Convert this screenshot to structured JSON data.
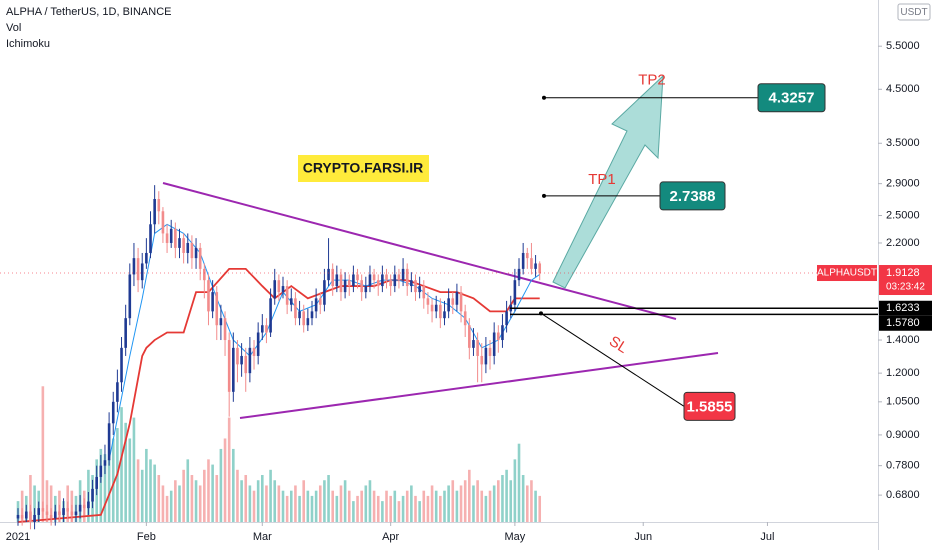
{
  "header": {
    "symbol": "ALPHA / TetherUS, 1D, BINANCE",
    "volume": "Vol",
    "indicator": "Ichimoku"
  },
  "chart_data": {
    "type": "candlestick",
    "currency": "USDT",
    "watermark": "CRYPTO.FARSI.IR",
    "x": [
      0,
      1,
      2,
      3,
      4,
      5,
      6,
      7,
      8,
      9,
      10,
      11,
      12,
      13,
      14,
      15,
      16,
      17,
      18,
      19,
      20,
      21,
      22,
      23,
      24,
      25,
      26,
      27,
      28,
      29,
      30,
      31,
      32,
      33,
      34,
      35,
      36,
      37,
      38,
      39,
      40,
      41,
      42,
      43,
      44,
      45,
      46,
      47,
      48,
      49,
      50,
      51,
      52,
      53,
      54,
      55,
      56,
      57,
      58,
      59,
      60,
      61,
      62,
      63,
      64,
      65,
      66,
      67,
      68,
      69,
      70,
      71,
      72,
      73,
      74,
      75,
      76,
      77,
      78,
      79,
      80,
      81,
      82,
      83,
      84,
      85,
      86,
      87,
      88,
      89,
      90,
      91,
      92,
      93,
      94,
      95,
      96,
      97,
      98,
      99,
      100,
      101,
      102,
      103,
      104,
      105,
      106,
      107,
      108,
      109,
      110,
      111,
      112,
      113,
      114,
      115,
      116,
      117,
      118,
      119,
      120,
      121,
      122,
      123,
      124,
      125,
      126
    ],
    "open": [
      0.61,
      0.62,
      0.61,
      0.63,
      0.6,
      0.62,
      0.64,
      0.63,
      0.62,
      0.61,
      0.63,
      0.62,
      0.64,
      0.63,
      0.62,
      0.63,
      0.65,
      0.64,
      0.66,
      0.7,
      0.74,
      0.78,
      0.8,
      0.95,
      1.05,
      1.15,
      1.35,
      1.55,
      1.9,
      2.05,
      1.85,
      2.0,
      2.1,
      2.4,
      2.7,
      2.55,
      2.3,
      2.2,
      2.35,
      2.15,
      2.25,
      2.1,
      2.2,
      2.05,
      2.15,
      1.95,
      1.85,
      1.6,
      1.75,
      1.5,
      1.55,
      1.4,
      1.1,
      1.35,
      1.25,
      1.3,
      1.2,
      1.35,
      1.3,
      1.45,
      1.5,
      1.45,
      1.7,
      1.85,
      1.75,
      1.8,
      1.65,
      1.7,
      1.55,
      1.6,
      1.5,
      1.55,
      1.6,
      1.7,
      1.65,
      1.85,
      1.95,
      1.8,
      1.9,
      1.75,
      1.85,
      1.8,
      1.9,
      1.85,
      1.75,
      1.8,
      1.9,
      1.85,
      1.8,
      1.9,
      1.85,
      1.8,
      1.9,
      1.85,
      1.95,
      1.8,
      1.85,
      1.75,
      1.8,
      1.7,
      1.65,
      1.6,
      1.65,
      1.55,
      1.6,
      1.7,
      1.65,
      1.75,
      1.6,
      1.5,
      1.35,
      1.4,
      1.3,
      1.25,
      1.35,
      1.3,
      1.45,
      1.4,
      1.5,
      1.6,
      1.65,
      1.85,
      1.95,
      2.1,
      2.05,
      1.95,
      2.0
    ],
    "high": [
      0.64,
      0.64,
      0.65,
      0.65,
      0.64,
      0.66,
      0.66,
      0.65,
      0.64,
      0.65,
      0.65,
      0.67,
      0.66,
      0.65,
      0.65,
      0.68,
      0.67,
      0.69,
      0.73,
      0.78,
      0.82,
      0.86,
      1.0,
      1.1,
      1.22,
      1.42,
      1.65,
      2.0,
      2.2,
      2.15,
      2.1,
      2.25,
      2.55,
      2.88,
      2.8,
      2.6,
      2.4,
      2.45,
      2.42,
      2.35,
      2.3,
      2.3,
      2.28,
      2.25,
      2.2,
      2.0,
      1.9,
      1.85,
      1.8,
      1.65,
      1.6,
      1.45,
      1.45,
      1.4,
      1.38,
      1.35,
      1.42,
      1.4,
      1.52,
      1.58,
      1.55,
      1.78,
      1.95,
      1.9,
      1.88,
      1.85,
      1.78,
      1.75,
      1.68,
      1.65,
      1.62,
      1.68,
      1.78,
      1.75,
      1.95,
      2.25,
      2.0,
      1.98,
      1.95,
      1.92,
      1.9,
      1.98,
      1.95,
      1.9,
      1.88,
      1.98,
      1.95,
      1.9,
      1.98,
      1.95,
      1.9,
      1.98,
      1.95,
      2.05,
      2.0,
      1.92,
      1.9,
      1.88,
      1.85,
      1.75,
      1.7,
      1.72,
      1.7,
      1.68,
      1.78,
      1.75,
      1.82,
      1.8,
      1.65,
      1.55,
      1.48,
      1.45,
      1.38,
      1.42,
      1.4,
      1.52,
      1.5,
      1.58,
      1.68,
      1.72,
      1.95,
      2.05,
      2.2,
      2.15,
      2.2,
      2.08,
      2.02
    ],
    "low": [
      0.59,
      0.59,
      0.6,
      0.58,
      0.58,
      0.6,
      0.61,
      0.6,
      0.59,
      0.59,
      0.6,
      0.6,
      0.61,
      0.6,
      0.6,
      0.61,
      0.62,
      0.62,
      0.64,
      0.68,
      0.72,
      0.75,
      0.78,
      0.9,
      1.0,
      1.1,
      1.3,
      1.5,
      1.8,
      1.75,
      1.78,
      1.95,
      2.05,
      2.3,
      2.4,
      2.2,
      2.1,
      2.15,
      2.05,
      2.05,
      2.0,
      2.0,
      1.95,
      1.95,
      1.85,
      1.7,
      1.5,
      1.55,
      1.4,
      1.4,
      1.3,
      0.98,
      1.05,
      1.15,
      1.18,
      1.1,
      1.15,
      1.22,
      1.25,
      1.4,
      1.38,
      1.42,
      1.65,
      1.68,
      1.7,
      1.58,
      1.6,
      1.5,
      1.5,
      1.45,
      1.46,
      1.5,
      1.55,
      1.58,
      1.6,
      1.8,
      1.72,
      1.75,
      1.68,
      1.7,
      1.72,
      1.75,
      1.78,
      1.68,
      1.7,
      1.75,
      1.78,
      1.72,
      1.75,
      1.78,
      1.72,
      1.75,
      1.78,
      1.8,
      1.72,
      1.75,
      1.68,
      1.7,
      1.62,
      1.58,
      1.52,
      1.55,
      1.48,
      1.5,
      1.55,
      1.58,
      1.6,
      1.52,
      1.42,
      1.28,
      1.3,
      1.15,
      1.15,
      1.2,
      1.22,
      1.25,
      1.32,
      1.35,
      1.45,
      1.55,
      1.6,
      1.8,
      1.9,
      1.95,
      1.9,
      1.88,
      1.85
    ],
    "close": [
      0.62,
      0.61,
      0.63,
      0.6,
      0.62,
      0.64,
      0.63,
      0.62,
      0.61,
      0.63,
      0.62,
      0.64,
      0.63,
      0.62,
      0.63,
      0.65,
      0.64,
      0.66,
      0.7,
      0.74,
      0.78,
      0.8,
      0.95,
      1.05,
      1.15,
      1.35,
      1.55,
      1.9,
      2.05,
      1.85,
      2.0,
      2.1,
      2.4,
      2.7,
      2.55,
      2.3,
      2.2,
      2.35,
      2.15,
      2.25,
      2.1,
      2.2,
      2.05,
      2.15,
      1.95,
      1.85,
      1.6,
      1.75,
      1.5,
      1.55,
      1.4,
      1.1,
      1.35,
      1.25,
      1.3,
      1.2,
      1.35,
      1.3,
      1.45,
      1.5,
      1.45,
      1.7,
      1.85,
      1.75,
      1.8,
      1.65,
      1.7,
      1.55,
      1.6,
      1.5,
      1.55,
      1.6,
      1.7,
      1.65,
      1.85,
      1.95,
      1.8,
      1.9,
      1.75,
      1.85,
      1.8,
      1.9,
      1.85,
      1.75,
      1.8,
      1.9,
      1.85,
      1.8,
      1.9,
      1.85,
      1.8,
      1.9,
      1.85,
      1.95,
      1.8,
      1.85,
      1.75,
      1.8,
      1.7,
      1.65,
      1.6,
      1.65,
      1.55,
      1.6,
      1.7,
      1.65,
      1.75,
      1.6,
      1.5,
      1.35,
      1.4,
      1.3,
      1.25,
      1.35,
      1.3,
      1.45,
      1.4,
      1.5,
      1.6,
      1.65,
      1.85,
      1.95,
      2.1,
      2.05,
      1.95,
      2.0,
      1.91
    ],
    "volume": [
      20,
      30,
      25,
      45,
      35,
      30,
      130,
      40,
      35,
      25,
      30,
      20,
      35,
      30,
      25,
      40,
      30,
      50,
      45,
      60,
      70,
      65,
      60,
      80,
      90,
      110,
      95,
      80,
      100,
      60,
      50,
      70,
      60,
      55,
      45,
      35,
      25,
      30,
      40,
      35,
      50,
      60,
      45,
      40,
      35,
      50,
      60,
      55,
      45,
      70,
      80,
      100,
      70,
      50,
      40,
      45,
      35,
      30,
      40,
      45,
      35,
      50,
      40,
      35,
      30,
      25,
      30,
      35,
      25,
      40,
      30,
      25,
      30,
      35,
      40,
      45,
      30,
      25,
      35,
      40,
      30,
      20,
      25,
      30,
      35,
      40,
      30,
      25,
      20,
      30,
      25,
      30,
      20,
      25,
      30,
      35,
      25,
      20,
      30,
      25,
      35,
      30,
      25,
      30,
      35,
      40,
      30,
      35,
      40,
      50,
      35,
      40,
      30,
      25,
      30,
      35,
      40,
      45,
      50,
      40,
      60,
      75,
      45,
      35,
      40,
      30,
      25
    ],
    "volume_ylim": [
      0,
      500
    ],
    "xlim": [
      -4.35,
      207.7
    ],
    "xticks": [
      {
        "value": 0,
        "label": "2021"
      },
      {
        "value": 31,
        "label": "Feb"
      },
      {
        "value": 59,
        "label": "Mar"
      },
      {
        "value": 90,
        "label": "Apr"
      },
      {
        "value": 120,
        "label": "May"
      },
      {
        "value": 151,
        "label": "Jun"
      },
      {
        "value": 181,
        "label": "Jul"
      }
    ],
    "ylim": [
      0.6,
      6.82
    ],
    "yscale": "log",
    "grid": false,
    "yticks": [
      {
        "value": 5.5,
        "label": "5.5000"
      },
      {
        "value": 4.5,
        "label": "4.5000"
      },
      {
        "value": 3.5,
        "label": "3.5000"
      },
      {
        "value": 2.9,
        "label": "2.9000"
      },
      {
        "value": 2.5,
        "label": "2.5000"
      },
      {
        "value": 2.2,
        "label": "2.2000"
      },
      {
        "value": 1.4,
        "label": "1.4000"
      },
      {
        "value": 1.2,
        "label": "1.2000"
      },
      {
        "value": 1.05,
        "label": "1.0500"
      },
      {
        "value": 0.9,
        "label": "0.9000"
      },
      {
        "value": 0.78,
        "label": "0.7800"
      },
      {
        "value": 0.68,
        "label": "0.6800"
      }
    ],
    "colors": {
      "up": "#1f3a93",
      "down": "#f28b8b",
      "volume_up": "#8fd1c9",
      "volume_down": "#f6b0b0"
    },
    "ichimoku": {
      "base_line": {
        "color": "#e53935",
        "x": [
          0,
          20,
          24,
          27,
          30,
          31,
          33,
          36,
          40,
          43,
          46,
          51,
          55,
          59,
          62,
          66,
          70,
          74,
          78,
          82,
          86,
          90,
          94,
          98,
          102,
          106,
          110,
          114,
          118,
          120,
          126
        ],
        "values": [
          0.6,
          0.62,
          0.75,
          0.95,
          1.3,
          1.35,
          1.4,
          1.45,
          1.45,
          1.75,
          1.75,
          1.95,
          1.95,
          1.8,
          1.7,
          1.8,
          1.7,
          1.75,
          1.8,
          1.8,
          1.8,
          1.85,
          1.85,
          1.8,
          1.75,
          1.75,
          1.7,
          1.6,
          1.6,
          1.7,
          1.7
        ]
      },
      "conversion_line": {
        "color": "#2196f3",
        "x": [
          22,
          27,
          30,
          33,
          36,
          40,
          44,
          48,
          52,
          56,
          60,
          64,
          68,
          72,
          76,
          80,
          84,
          88,
          92,
          96,
          100,
          104,
          108,
          112,
          116,
          120,
          124,
          126
        ],
        "values": [
          0.8,
          1.3,
          1.7,
          2.3,
          2.4,
          2.3,
          2.1,
          1.7,
          1.4,
          1.3,
          1.45,
          1.75,
          1.6,
          1.65,
          1.85,
          1.85,
          1.8,
          1.85,
          1.85,
          1.8,
          1.7,
          1.65,
          1.55,
          1.35,
          1.4,
          1.6,
          1.85,
          1.9
        ]
      }
    },
    "price_line": {
      "symbol": "ALPHAUSDT",
      "value": 1.9128,
      "countdown": "03:23:42"
    },
    "levels": [
      {
        "value": 1.6233
      },
      {
        "value": 1.578,
        "label": "1.5780"
      }
    ],
    "targets": [
      {
        "name": "TP2",
        "value": 4.3257
      },
      {
        "name": "TP1",
        "value": 2.7388
      },
      {
        "name": "SL",
        "value": 1.5855
      }
    ]
  }
}
